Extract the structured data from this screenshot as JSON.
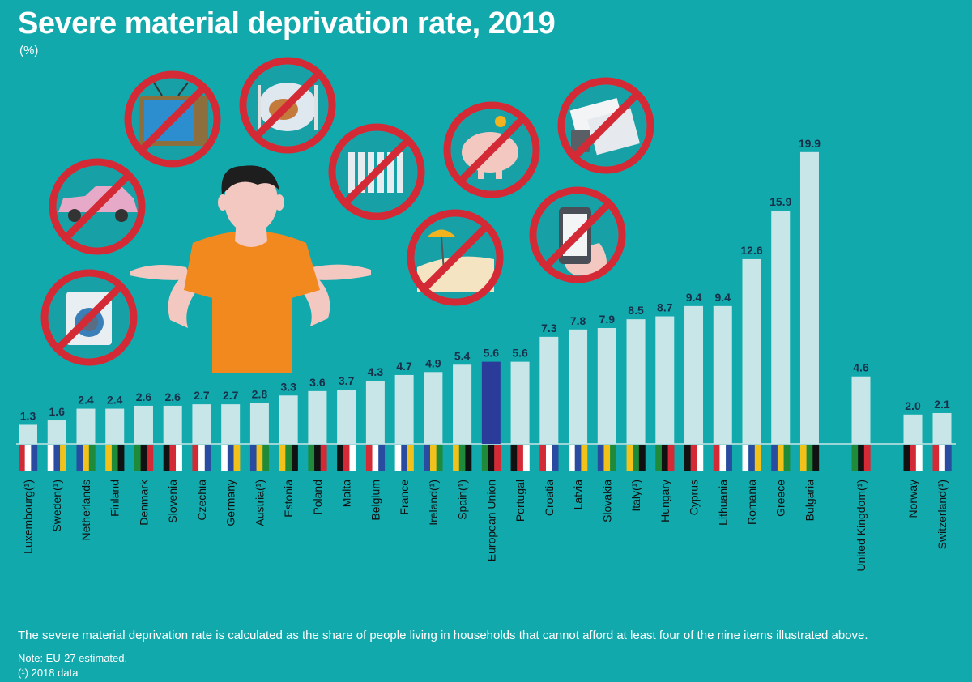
{
  "header": {
    "title": "Severe material deprivation rate, 2019",
    "unit": "(%)"
  },
  "footer": {
    "description": "The severe material deprivation rate is calculated as the share of people living in households that cannot afford at least four of the nine items illustrated above.",
    "note": "Note: EU-27 estimated.",
    "note2": "(¹) 2018 data"
  },
  "illustration": {
    "icons": [
      "washing-machine-icon",
      "car-icon",
      "television-icon",
      "meal-icon",
      "heater-icon",
      "holiday-beach-icon",
      "piggy-bank-icon",
      "bills-icon",
      "mobile-phone-icon",
      "person-shrugging-icon"
    ]
  },
  "colors": {
    "background": "#12a9ad",
    "bar": "#c8e6e7",
    "bar_highlight": "#2a3b9a",
    "prohibition": "#d42a36"
  },
  "chart_data": {
    "type": "bar",
    "categories": [
      "Luxembourg(¹)",
      "Sweden(¹)",
      "Netherlands",
      "Finland",
      "Denmark",
      "Slovenia",
      "Czechia",
      "Germany",
      "Austria(¹)",
      "Estonia",
      "Poland",
      "Malta",
      "Belgium",
      "France",
      "Ireland(¹)",
      "Spain(¹)",
      "European Union",
      "Portugal",
      "Croatia",
      "Latvia",
      "Slovakia",
      "Italy(¹)",
      "Hungary",
      "Cyprus",
      "Lithuania",
      "Romania",
      "Greece",
      "Bulgaria",
      "United Kingdom(¹)",
      "Norway",
      "Switzerland(¹)"
    ],
    "values": [
      1.3,
      1.6,
      2.4,
      2.4,
      2.6,
      2.6,
      2.7,
      2.7,
      2.8,
      3.3,
      3.6,
      3.7,
      4.3,
      4.7,
      4.9,
      5.4,
      5.6,
      5.6,
      7.3,
      7.8,
      7.9,
      8.5,
      8.7,
      9.4,
      9.4,
      12.6,
      15.9,
      19.9,
      4.6,
      2.0,
      2.1
    ],
    "labels": [
      "1.3",
      "1.6",
      "2.4",
      "2.4",
      "2.6",
      "2.6",
      "2.7",
      "2.7",
      "2.8",
      "3.3",
      "3.6",
      "3.7",
      "4.3",
      "4.7",
      "4.9",
      "5.4",
      "5.6",
      "5.6",
      "7.3",
      "7.8",
      "7.9",
      "8.5",
      "8.7",
      "9.4",
      "9.4",
      "12.6",
      "15.9",
      "19.9",
      "4.6",
      "2.0",
      "2.1"
    ],
    "highlight": "European Union",
    "title": "Severe material deprivation rate, 2019",
    "ylabel": "(%)",
    "ylim": [
      0,
      20
    ]
  }
}
